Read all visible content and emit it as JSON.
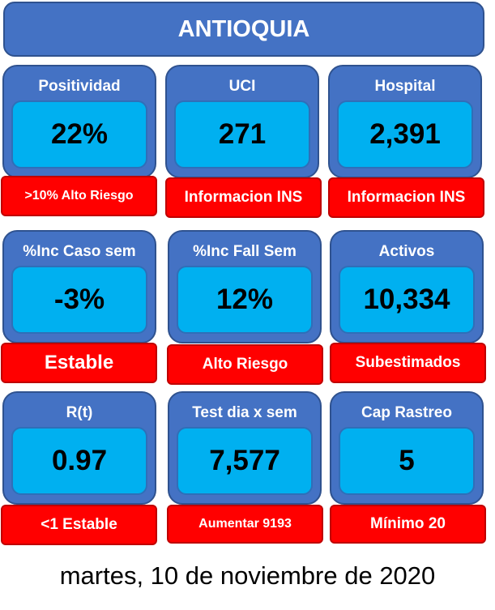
{
  "title": "ANTIOQUIA",
  "colors": {
    "card_blue": "#4472c4",
    "value_cyan": "#00b0f0",
    "status_red": "#ff0000"
  },
  "cards": [
    {
      "label": "Positividad",
      "value": "22%",
      "status": ">10% Alto Riesgo"
    },
    {
      "label": "UCI",
      "value": "271",
      "status": "Informacion INS"
    },
    {
      "label": "Hospital",
      "value": "2,391",
      "status": "Informacion INS"
    },
    {
      "label": "%Inc Caso sem",
      "value": "-3%",
      "status": "Estable"
    },
    {
      "label": "%Inc Fall Sem",
      "value": "12%",
      "status": "Alto Riesgo"
    },
    {
      "label": "Activos",
      "value": "10,334",
      "status": "Subestimados"
    },
    {
      "label": "R(t)",
      "value": "0.97",
      "status": "<1 Estable"
    },
    {
      "label": "Test dia x sem",
      "value": "7,577",
      "status": "Aumentar 9193"
    },
    {
      "label": "Cap Rastreo",
      "value": "5",
      "status": "Mínimo 20"
    }
  ],
  "date": "martes, 10 de noviembre de 2020"
}
